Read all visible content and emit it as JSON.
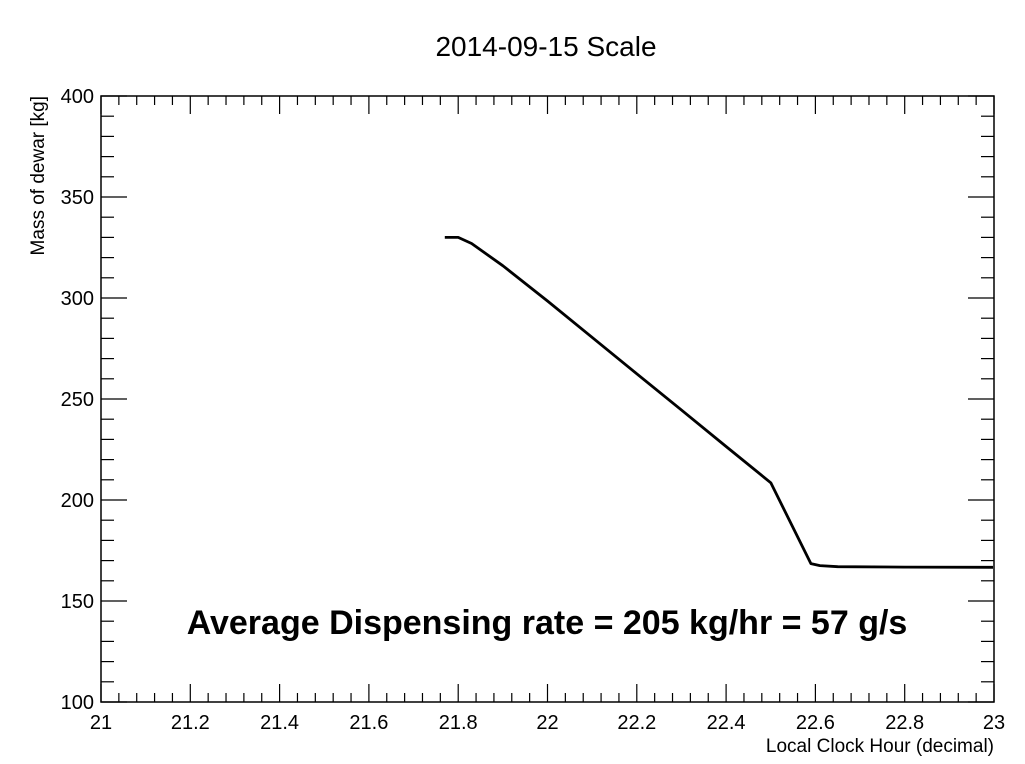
{
  "chart_data": {
    "type": "line",
    "title": "2014-09-15  Scale",
    "xlabel": "Local Clock Hour (decimal)",
    "ylabel": "Mass of dewar [kg]",
    "xlim": [
      21,
      23
    ],
    "ylim": [
      100,
      400
    ],
    "x_ticks": [
      21,
      21.2,
      21.4,
      21.6,
      21.8,
      22,
      22.2,
      22.4,
      22.6,
      22.8,
      23
    ],
    "x_tick_labels": [
      "21",
      "21.2",
      "21.4",
      "21.6",
      "21.8",
      "22",
      "22.2",
      "22.4",
      "22.6",
      "22.8",
      "23"
    ],
    "y_ticks": [
      100,
      150,
      200,
      250,
      300,
      350,
      400
    ],
    "y_tick_labels": [
      "100",
      "150",
      "200",
      "250",
      "300",
      "350",
      "400"
    ],
    "grid": false,
    "series": [
      {
        "name": "Scale",
        "x": [
          21.77,
          21.8,
          21.83,
          21.9,
          22.0,
          22.1,
          22.2,
          22.3,
          22.4,
          22.5,
          22.59,
          22.61,
          22.65,
          22.8,
          23.0
        ],
        "y": [
          330,
          330,
          327,
          316,
          298.5,
          280.5,
          262.5,
          244.5,
          226.5,
          208.5,
          168.5,
          167.5,
          167,
          166.8,
          166.7
        ]
      }
    ],
    "annotation": "Average Dispensing rate =  205 kg/hr =   57 g/s",
    "annotation_position": "bottom-center"
  }
}
